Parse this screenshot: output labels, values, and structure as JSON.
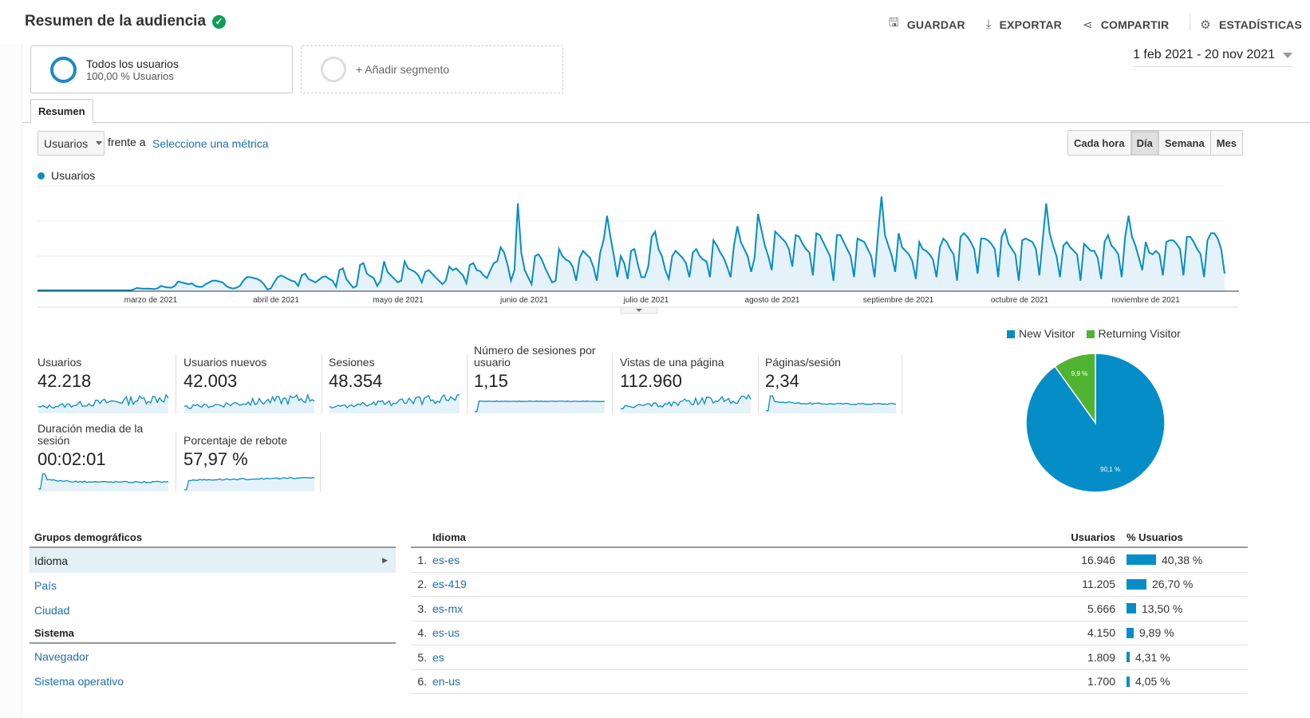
{
  "header": {
    "title": "Resumen de la audiencia",
    "save": "GUARDAR",
    "export": "EXPORTAR",
    "share": "COMPARTIR",
    "insights": "ESTADÍSTICAS"
  },
  "segments": [
    {
      "name": "Todos los usuarios",
      "sub": "100,00 % Usuarios"
    },
    {
      "name": "+ Añadir segmento"
    }
  ],
  "date_range": "1 feb 2021 - 20 nov 2021",
  "tabs": [
    "Resumen"
  ],
  "controls": {
    "metric": "Usuarios",
    "vs": "frente a",
    "select_metric": "Seleccione una métrica",
    "granularity": [
      "Cada hora",
      "Día",
      "Semana",
      "Mes"
    ],
    "active_granularity": "Día"
  },
  "colors": {
    "accent": "#058dc7",
    "green": "#50b432"
  },
  "chart_data": [
    {
      "type": "area",
      "series": [
        {
          "name": "Usuarios",
          "values": [
            5,
            5,
            5,
            5,
            5,
            5,
            5,
            5,
            5,
            5,
            5,
            5,
            5,
            5,
            5,
            5,
            5,
            5,
            5,
            5,
            5,
            5,
            5,
            5,
            5,
            5,
            5,
            5,
            10,
            18,
            16,
            14,
            15,
            14,
            12,
            16,
            30,
            24,
            22,
            20,
            30,
            55,
            50,
            45,
            40,
            45,
            30,
            25,
            25,
            40,
            50,
            60,
            60,
            55,
            50,
            30,
            20,
            15,
            20,
            30,
            60,
            80,
            80,
            75,
            70,
            60,
            40,
            10,
            15,
            50,
            80,
            90,
            80,
            70,
            60,
            55,
            30,
            90,
            100,
            70,
            60,
            50,
            65,
            80,
            85,
            70,
            60,
            25,
            120,
            130,
            70,
            45,
            20,
            30,
            150,
            160,
            100,
            85,
            75,
            30,
            60,
            170,
            110,
            90,
            70,
            50,
            60,
            170,
            130,
            120,
            110,
            90,
            50,
            110,
            120,
            100,
            80,
            60,
            40,
            60,
            140,
            120,
            130,
            110,
            90,
            45,
            150,
            160,
            120,
            115,
            90,
            75,
            120,
            160,
            170,
            250,
            220,
            150,
            60,
            120,
            500,
            220,
            120,
            80,
            40,
            200,
            210,
            180,
            130,
            90,
            50,
            60,
            240,
            200,
            180,
            170,
            140,
            60,
            190,
            230,
            210,
            190,
            140,
            60,
            220,
            290,
            430,
            310,
            200,
            80,
            200,
            160,
            70,
            230,
            240,
            150,
            80,
            80,
            140,
            310,
            340,
            240,
            200,
            120,
            70,
            200,
            230,
            210,
            190,
            160,
            80,
            220,
            240,
            200,
            180,
            170,
            80,
            290,
            260,
            220,
            190,
            140,
            80,
            260,
            370,
            280,
            240,
            200,
            110,
            190,
            440,
            350,
            260,
            200,
            120,
            340,
            320,
            300,
            280,
            240,
            140,
            320,
            310,
            270,
            240,
            220,
            90,
            330,
            320,
            280,
            240,
            200,
            60,
            320,
            320,
            280,
            240,
            200,
            80,
            300,
            290,
            280,
            240,
            200,
            80,
            330,
            540,
            320,
            260,
            200,
            110,
            330,
            250,
            230,
            210,
            170,
            70,
            280,
            240,
            230,
            210,
            180,
            80,
            250,
            300,
            280,
            240,
            210,
            60,
            310,
            330,
            310,
            280,
            240,
            100,
            300,
            300,
            290,
            270,
            240,
            80,
            310,
            350,
            270,
            240,
            210,
            60,
            290,
            300,
            290,
            280,
            240,
            90,
            300,
            500,
            330,
            260,
            200,
            80,
            260,
            280,
            250,
            230,
            210,
            60,
            270,
            250,
            230,
            230,
            190,
            70,
            280,
            320,
            260,
            240,
            210,
            80,
            310,
            430,
            310,
            260,
            190,
            120,
            280,
            220,
            210,
            230,
            210,
            90,
            280,
            290,
            290,
            270,
            240,
            90,
            310,
            310,
            280,
            240,
            210,
            80,
            290,
            330,
            330,
            300,
            240,
            100
          ]
        }
      ],
      "xlabels": [
        "marzo de 2021",
        "abril de 2021",
        "mayo de 2021",
        "junio de 2021",
        "julio de 2021",
        "agosto de 2021",
        "septiembre de 2021",
        "octubre de 2021",
        "noviembre de 2021"
      ],
      "yticks": [
        200,
        400,
        600
      ],
      "ylim": [
        0,
        600
      ]
    },
    {
      "type": "pie",
      "series": [
        {
          "name": "New Visitor",
          "value": 90.1
        },
        {
          "name": "Returning Visitor",
          "value": 9.9
        }
      ],
      "labels": [
        "90,1 %",
        "9,9 %"
      ]
    }
  ],
  "metrics": [
    {
      "label": "Usuarios",
      "value": "42.218",
      "spark": "noisy"
    },
    {
      "label": "Usuarios nuevos",
      "value": "42.003",
      "spark": "noisy"
    },
    {
      "label": "Sesiones",
      "value": "48.354",
      "spark": "noisy"
    },
    {
      "label": "Número de sesiones por usuario",
      "value": "1,15",
      "spark": "flat-high"
    },
    {
      "label": "Vistas de una página",
      "value": "112.960",
      "spark": "noisy"
    },
    {
      "label": "Páginas/sesión",
      "value": "2,34",
      "spark": "decay"
    },
    {
      "label": "Duración media de la sesión",
      "value": "00:02:01",
      "spark": "decay"
    },
    {
      "label": "Porcentaje de rebote",
      "value": "57,97 %",
      "spark": "rise"
    }
  ],
  "demographics": {
    "groups_title": "Grupos demográficos",
    "groups": [
      "Idioma",
      "País",
      "Ciudad"
    ],
    "system_title": "Sistema",
    "system": [
      "Navegador",
      "Sistema operativo"
    ]
  },
  "table": {
    "col_name": "Idioma",
    "col_users": "Usuarios",
    "col_pct": "% Usuarios",
    "rows": [
      {
        "idx": "1.",
        "name": "es-es",
        "users": "16.946",
        "pct": "40,38 %",
        "frac": 0.4038
      },
      {
        "idx": "2.",
        "name": "es-419",
        "users": "11.205",
        "pct": "26,70 %",
        "frac": 0.267
      },
      {
        "idx": "3.",
        "name": "es-mx",
        "users": "5.666",
        "pct": "13,50 %",
        "frac": 0.135
      },
      {
        "idx": "4.",
        "name": "es-us",
        "users": "4.150",
        "pct": "9,89 %",
        "frac": 0.0989
      },
      {
        "idx": "5.",
        "name": "es",
        "users": "1.809",
        "pct": "4,31 %",
        "frac": 0.0431
      },
      {
        "idx": "6.",
        "name": "en-us",
        "users": "1.700",
        "pct": "4,05 %",
        "frac": 0.0405
      }
    ]
  }
}
